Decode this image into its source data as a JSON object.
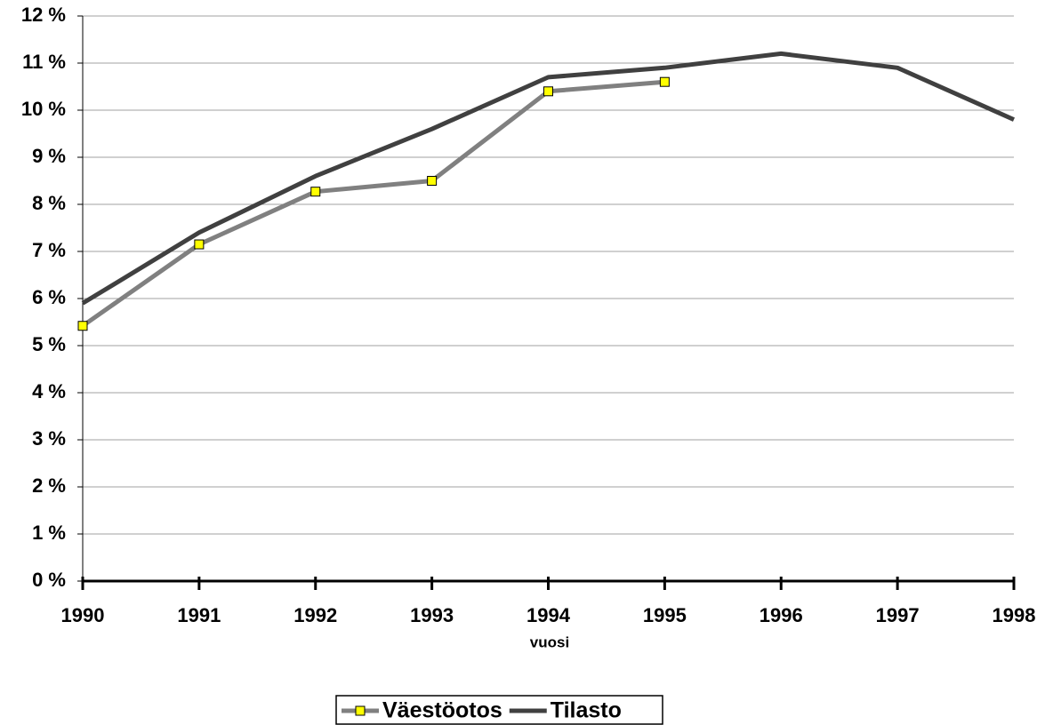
{
  "chart_data": {
    "type": "line",
    "x_label": "vuosi",
    "categories": [
      "1990",
      "1991",
      "1992",
      "1993",
      "1994",
      "1995",
      "1996",
      "1997",
      "1998"
    ],
    "series": [
      {
        "name": "Väestöotos",
        "color": "#808080",
        "marker": "square",
        "marker_color": "#ffff00",
        "values": [
          5.42,
          7.15,
          8.27,
          8.5,
          10.4,
          10.6,
          null,
          null,
          null
        ]
      },
      {
        "name": "Tilasto",
        "color": "#404040",
        "values": [
          5.9,
          7.4,
          8.6,
          9.6,
          10.7,
          10.9,
          11.2,
          10.9,
          9.8
        ]
      }
    ],
    "ylim": [
      0,
      12
    ],
    "yticks": [
      {
        "value": 0,
        "label": "0 %"
      },
      {
        "value": 1,
        "label": "1 %"
      },
      {
        "value": 2,
        "label": "2 %"
      },
      {
        "value": 3,
        "label": "3 %"
      },
      {
        "value": 4,
        "label": "4 %"
      },
      {
        "value": 5,
        "label": "5 %"
      },
      {
        "value": 6,
        "label": "6 %"
      },
      {
        "value": 7,
        "label": "7 %"
      },
      {
        "value": 8,
        "label": "8 %"
      },
      {
        "value": 9,
        "label": "9 %"
      },
      {
        "value": 10,
        "label": "10 %"
      },
      {
        "value": 11,
        "label": "11 %"
      },
      {
        "value": 12,
        "label": "12 %"
      }
    ],
    "grid": true,
    "legend": "bottom"
  }
}
